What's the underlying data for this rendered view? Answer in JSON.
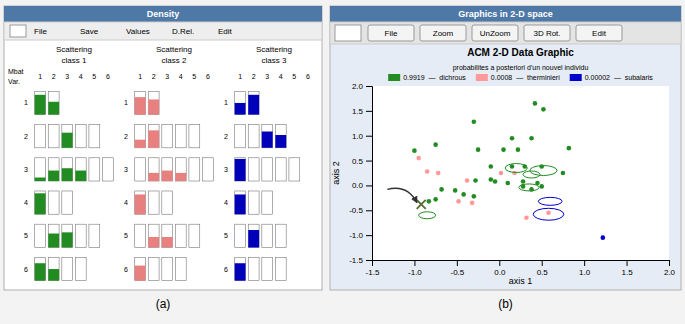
{
  "chart_data": [
    {
      "type": "bar",
      "title": "Density",
      "annotations": [
        "File",
        "Save",
        "Values",
        "D.Rel.",
        "Edit",
        "Mbat",
        "Var.",
        "(a)"
      ],
      "categories": [
        1,
        2,
        3,
        4,
        5,
        6
      ],
      "rows": [
        1,
        2,
        3,
        4,
        5,
        6
      ],
      "ylim": [
        0,
        1
      ],
      "series": [
        {
          "name": "Scattering",
          "subtitle": "class 1",
          "color": "#228B22",
          "values": [
            [
              0.85,
              0.55
            ],
            [
              0.0,
              0.0,
              0.65,
              0.0,
              0.0
            ],
            [
              0.15,
              0.45,
              0.55,
              0.45,
              0.0,
              0.0
            ],
            [
              0.9,
              0.0,
              0.0
            ],
            [
              0.0,
              0.6,
              0.65,
              0.0,
              0.0
            ],
            [
              0.75,
              0.5,
              0.0,
              0.0
            ]
          ]
        },
        {
          "name": "Scattering",
          "subtitle": "class 2",
          "color": "#E88080",
          "values": [
            [
              0.75,
              0.65
            ],
            [
              0.35,
              0.75,
              0.0,
              0.0,
              0.0
            ],
            [
              0.0,
              0.35,
              0.45,
              0.35,
              0.0,
              0.0
            ],
            [
              0.85,
              0.0,
              0.0
            ],
            [
              0.0,
              0.45,
              0.45,
              0.0,
              0.0
            ],
            [
              0.65,
              0.0,
              0.0,
              0.0
            ]
          ]
        },
        {
          "name": "Scattering",
          "subtitle": "class 3",
          "color": "#0000BB",
          "values": [
            [
              0.5,
              0.85
            ],
            [
              0.0,
              0.0,
              0.7,
              0.55
            ],
            [
              0.95,
              0.0,
              0.0,
              0.0,
              0.0
            ],
            [
              0.85,
              0.0,
              0.0
            ],
            [
              0.0,
              0.75,
              0.0,
              0.0
            ],
            [
              0.75,
              0.0,
              0.0,
              0.0
            ]
          ]
        }
      ]
    },
    {
      "type": "scatter",
      "title": "ACM 2-D Data Graphic",
      "annotations": [
        "Graphics in 2-D space",
        "File",
        "Zoom",
        "UnZoom",
        "3D Rot.",
        "Edit",
        "(b)"
      ],
      "x_label": "axis 1",
      "y_label": "axis 2",
      "xlim": [
        -1.5,
        2.0
      ],
      "ylim": [
        -1.5,
        2.0
      ],
      "xticks": [
        -1.5,
        {
          "value": -1.0,
          "label": "-1.0"
        },
        -0.5,
        {
          "value": 0.0,
          "label": "0.0"
        },
        0.5,
        {
          "value": 1.0,
          "label": "1.0"
        },
        1.5,
        {
          "value": 2.0,
          "label": "2.0"
        }
      ],
      "yticks": [
        -1.5,
        {
          "value": -1.0,
          "label": "-1.0"
        },
        -0.5,
        {
          "value": 0.0,
          "label": "0.0"
        },
        0.5,
        {
          "value": 1.0,
          "label": "1.0"
        },
        1.5,
        {
          "value": 2.0,
          "label": "2.0"
        }
      ],
      "legend": "top",
      "legend_title": "probabilites a posteriori d'un nouvel individu",
      "series": [
        {
          "name": "0.9919  —  dichrous",
          "color": "#228B22",
          "x": [
            -1.0,
            -0.75,
            -0.3,
            0.15,
            0.38,
            0.42,
            0.52,
            -0.25,
            0.05,
            0.22,
            -0.1,
            0.15,
            0.3,
            0.5,
            -0.05,
            0.1,
            0.28,
            0.45,
            -0.83,
            -0.75,
            0.28,
            0.38,
            0.5,
            -0.68,
            -0.52,
            0.75,
            0.82,
            -0.28,
            -0.1,
            -0.42,
            -0.3
          ],
          "values": [
            0.7,
            0.82,
            1.28,
            0.95,
            0.95,
            1.65,
            1.53,
            0.72,
            0.72,
            0.72,
            0.38,
            0.38,
            0.38,
            0.38,
            0.08,
            0.05,
            0.08,
            0.05,
            -0.32,
            -0.28,
            -0.02,
            -0.08,
            -0.02,
            -0.08,
            -0.1,
            0.25,
            0.75,
            0.1,
            0.12,
            -0.18,
            -0.22
          ]
        },
        {
          "name": "0.0008  —  therminieri",
          "color": "#FF9999",
          "x": [
            -0.95,
            -0.85,
            -0.72,
            0.02,
            0.18,
            -0.38,
            -0.48,
            -0.32,
            0.58,
            0.32
          ],
          "values": [
            0.55,
            0.28,
            0.25,
            0.25,
            0.25,
            0.1,
            -0.32,
            -0.35,
            -0.55,
            -0.65
          ]
        },
        {
          "name": "0.00002  —  subalaris",
          "color": "#0000CD",
          "x": [
            1.22
          ],
          "values": [
            -1.05
          ]
        },
        {
          "type": "ellipse",
          "color": "#228B22",
          "x": [
            0.2,
            0.52,
            0.38,
            0.35,
            -0.85
          ],
          "values": [
            0.35,
            0.3,
            0.22,
            -0.04,
            -0.6
          ],
          "rx": [
            0.13,
            0.16,
            0.1,
            0.12,
            0.1
          ],
          "ry": [
            0.09,
            0.1,
            0.07,
            0.07,
            0.07
          ]
        },
        {
          "type": "ellipse",
          "color": "#0000CD",
          "x": [
            0.6,
            0.58
          ],
          "values": [
            -0.32,
            -0.58
          ],
          "rx": [
            0.14,
            0.18
          ],
          "ry": [
            0.08,
            0.12
          ]
        },
        {
          "marker": "x",
          "color": "#556B2F",
          "x": [
            -0.92
          ],
          "values": [
            -0.38
          ]
        },
        {
          "type": "arrow",
          "x": [
            -1.32,
            -0.97
          ],
          "values": [
            -0.08,
            -0.35
          ]
        }
      ]
    }
  ]
}
